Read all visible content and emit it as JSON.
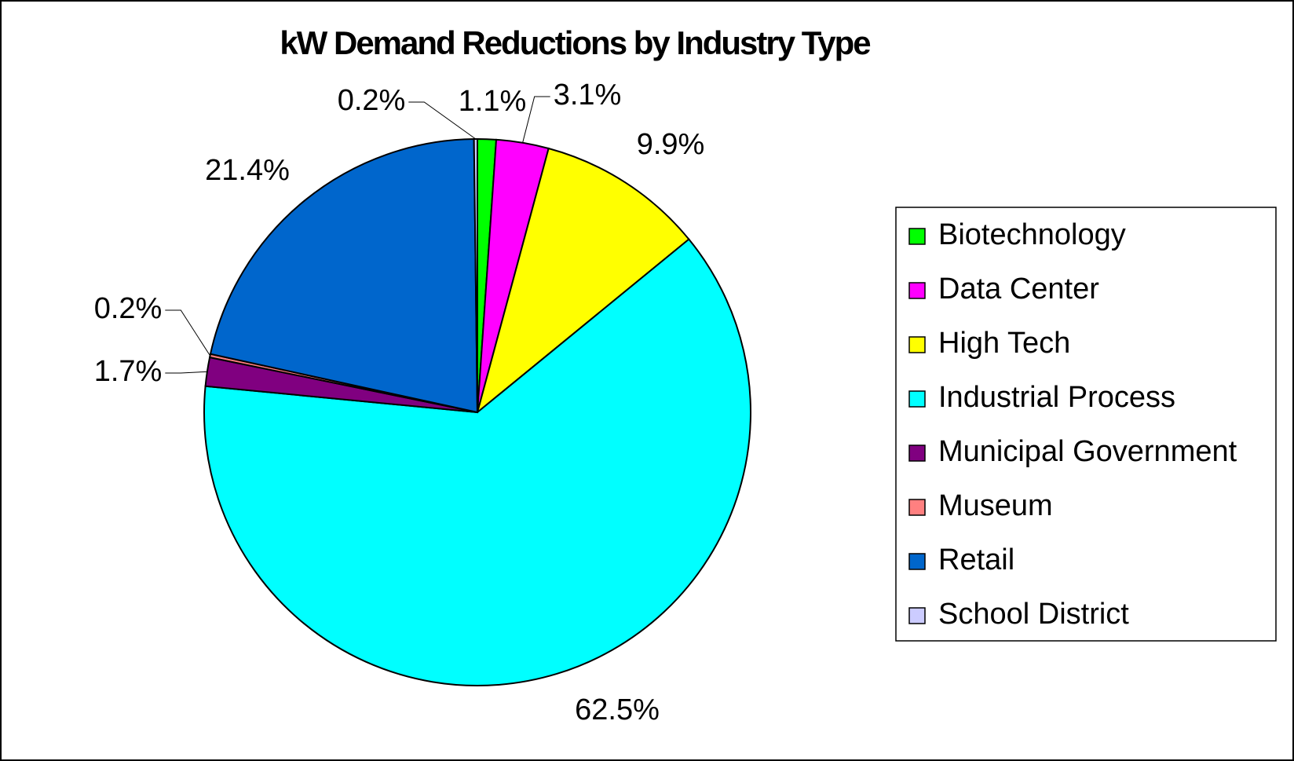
{
  "chart_data": {
    "type": "pie",
    "title": "kW Demand Reductions by Industry Type",
    "categories": [
      "Biotechnology",
      "Data Center",
      "High Tech",
      "Industrial Process",
      "Municipal Government",
      "Museum",
      "Retail",
      "School District"
    ],
    "values": [
      1.1,
      3.1,
      9.9,
      62.5,
      1.7,
      0.2,
      21.4,
      0.2
    ],
    "value_labels": [
      "1.1%",
      "3.1%",
      "9.9%",
      "62.5%",
      "1.7%",
      "0.2%",
      "21.4%",
      "0.2%"
    ],
    "colors": [
      "#00ff00",
      "#ff00ff",
      "#ffff00",
      "#00ffff",
      "#800080",
      "#ff8080",
      "#0066cc",
      "#ccccff"
    ],
    "legend": "right"
  }
}
